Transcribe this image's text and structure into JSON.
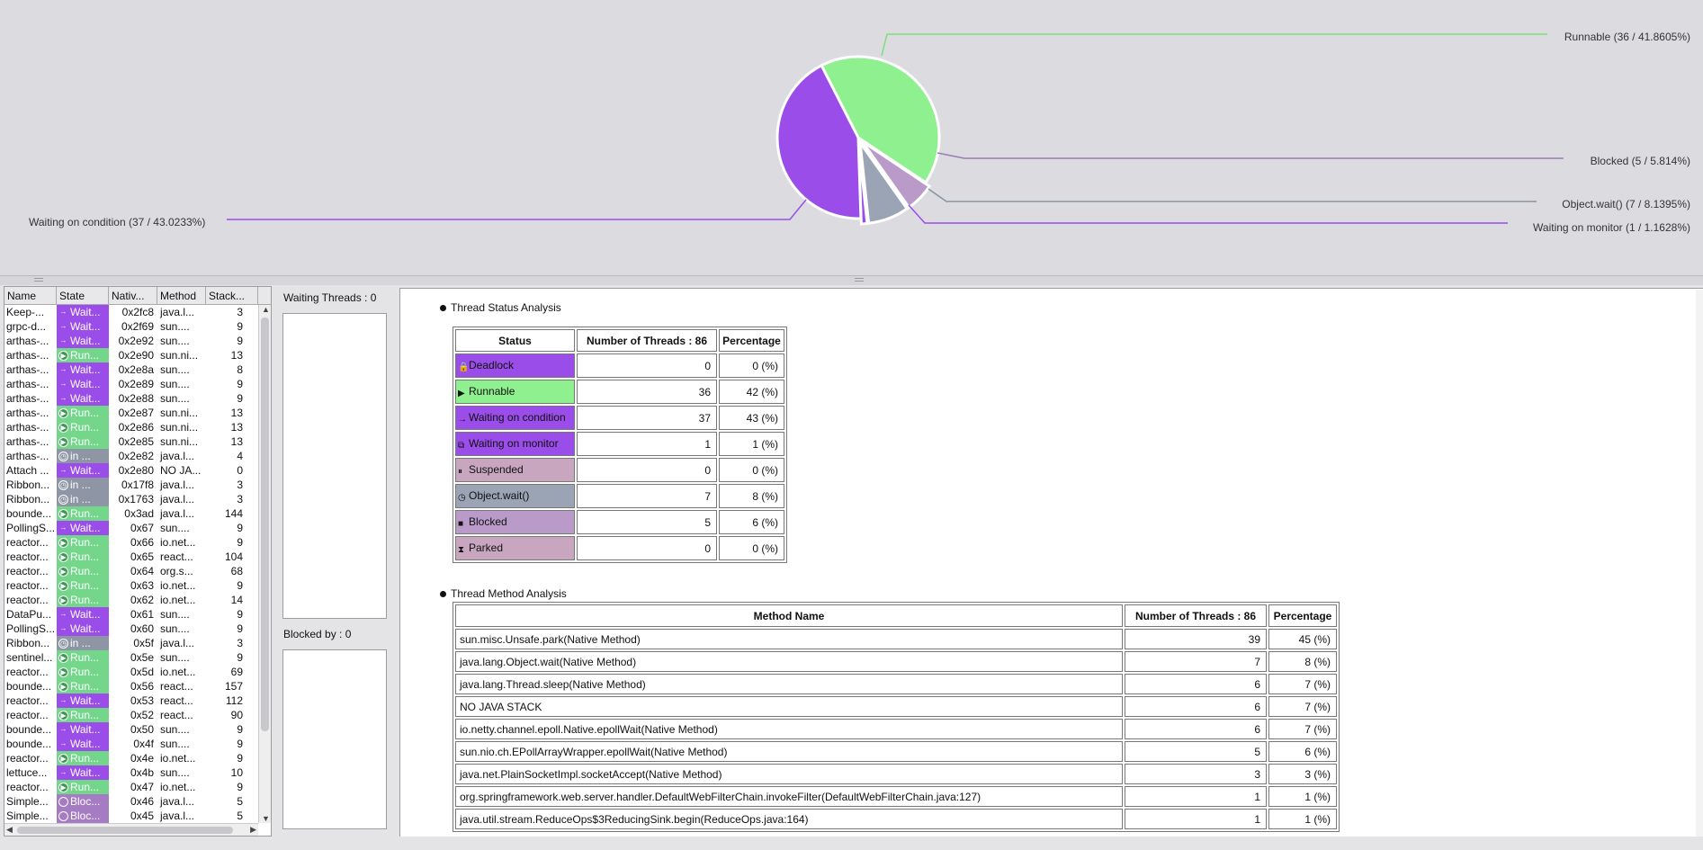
{
  "pie": {
    "labels": {
      "runnable": "Runnable (36  / 41.8605%)",
      "blocked": "Blocked (5  / 5.814%)",
      "object_wait": "Object.wait() (7  / 8.1395%)",
      "waiting_monitor": "Waiting on monitor (1  / 1.1628%)",
      "waiting_condition": "Waiting on condition (37  / 43.0233%)"
    }
  },
  "chart_data": {
    "type": "pie",
    "categories": [
      "Runnable",
      "Blocked",
      "Object.wait()",
      "Waiting on monitor",
      "Waiting on condition"
    ],
    "values": [
      36,
      5,
      7,
      1,
      37
    ],
    "percentages": [
      41.8605,
      5.814,
      8.1395,
      1.1628,
      43.0233
    ],
    "colors": [
      "#8ef08e",
      "#b99ac8",
      "#9aa4b4",
      "#9a4de8",
      "#9a4de8"
    ]
  },
  "threads": {
    "headers": [
      "Name",
      "State",
      "Nativ...",
      "Method",
      "Stack..."
    ],
    "rows": [
      {
        "name": "Keep-...",
        "state": "Wait...",
        "kind": "Wait",
        "nat": "0x2fc8",
        "meth": "java.l...",
        "stack": "3"
      },
      {
        "name": "grpc-d...",
        "state": "Wait...",
        "kind": "Wait",
        "nat": "0x2f69",
        "meth": "sun....",
        "stack": "9"
      },
      {
        "name": "arthas-...",
        "state": "Wait...",
        "kind": "Wait",
        "nat": "0x2e92",
        "meth": "sun....",
        "stack": "9"
      },
      {
        "name": "arthas-...",
        "state": "Run...",
        "kind": "Run",
        "nat": "0x2e90",
        "meth": "sun.ni...",
        "stack": "13"
      },
      {
        "name": "arthas-...",
        "state": "Wait...",
        "kind": "Wait",
        "nat": "0x2e8a",
        "meth": "sun....",
        "stack": "8"
      },
      {
        "name": "arthas-...",
        "state": "Wait...",
        "kind": "Wait",
        "nat": "0x2e89",
        "meth": "sun....",
        "stack": "9"
      },
      {
        "name": "arthas-...",
        "state": "Wait...",
        "kind": "Wait",
        "nat": "0x2e88",
        "meth": "sun....",
        "stack": "9"
      },
      {
        "name": "arthas-...",
        "state": "Run...",
        "kind": "Run",
        "nat": "0x2e87",
        "meth": "sun.ni...",
        "stack": "13"
      },
      {
        "name": "arthas-...",
        "state": "Run...",
        "kind": "Run",
        "nat": "0x2e86",
        "meth": "sun.ni...",
        "stack": "13"
      },
      {
        "name": "arthas-...",
        "state": "Run...",
        "kind": "Run",
        "nat": "0x2e85",
        "meth": "sun.ni...",
        "stack": "13"
      },
      {
        "name": "arthas-...",
        "state": "in ...",
        "kind": "in",
        "nat": "0x2e82",
        "meth": "java.l...",
        "stack": "4"
      },
      {
        "name": "Attach ...",
        "state": "Wait...",
        "kind": "Wait",
        "nat": "0x2e80",
        "meth": "NO JA...",
        "stack": "0"
      },
      {
        "name": "Ribbon...",
        "state": "in ...",
        "kind": "in",
        "nat": "0x17f8",
        "meth": "java.l...",
        "stack": "3"
      },
      {
        "name": "Ribbon...",
        "state": "in ...",
        "kind": "in",
        "nat": "0x1763",
        "meth": "java.l...",
        "stack": "3"
      },
      {
        "name": "bounde...",
        "state": "Run...",
        "kind": "Run",
        "nat": "0x3ad",
        "meth": "java.l...",
        "stack": "144"
      },
      {
        "name": "PollingS...",
        "state": "Wait...",
        "kind": "Wait",
        "nat": "0x67",
        "meth": "sun....",
        "stack": "9"
      },
      {
        "name": "reactor...",
        "state": "Run...",
        "kind": "Run",
        "nat": "0x66",
        "meth": "io.net...",
        "stack": "9"
      },
      {
        "name": "reactor...",
        "state": "Run...",
        "kind": "Run",
        "nat": "0x65",
        "meth": "react...",
        "stack": "104"
      },
      {
        "name": "reactor...",
        "state": "Run...",
        "kind": "Run",
        "nat": "0x64",
        "meth": "org.s...",
        "stack": "68"
      },
      {
        "name": "reactor...",
        "state": "Run...",
        "kind": "Run",
        "nat": "0x63",
        "meth": "io.net...",
        "stack": "9"
      },
      {
        "name": "reactor...",
        "state": "Run...",
        "kind": "Run",
        "nat": "0x62",
        "meth": "io.net...",
        "stack": "14"
      },
      {
        "name": "DataPu...",
        "state": "Wait...",
        "kind": "Wait",
        "nat": "0x61",
        "meth": "sun....",
        "stack": "9"
      },
      {
        "name": "PollingS...",
        "state": "Wait...",
        "kind": "Wait",
        "nat": "0x60",
        "meth": "sun....",
        "stack": "9"
      },
      {
        "name": "Ribbon...",
        "state": "in ...",
        "kind": "in",
        "nat": "0x5f",
        "meth": "java.l...",
        "stack": "3"
      },
      {
        "name": "sentinel...",
        "state": "Run...",
        "kind": "Run",
        "nat": "0x5e",
        "meth": "sun....",
        "stack": "9"
      },
      {
        "name": "reactor...",
        "state": "Run...",
        "kind": "Run",
        "nat": "0x5d",
        "meth": "io.net...",
        "stack": "69"
      },
      {
        "name": "bounde...",
        "state": "Run...",
        "kind": "Run",
        "nat": "0x56",
        "meth": "react...",
        "stack": "157"
      },
      {
        "name": "reactor...",
        "state": "Wait...",
        "kind": "Wait",
        "nat": "0x53",
        "meth": "react...",
        "stack": "112"
      },
      {
        "name": "reactor...",
        "state": "Run...",
        "kind": "Run",
        "nat": "0x52",
        "meth": "react...",
        "stack": "90"
      },
      {
        "name": "bounde...",
        "state": "Wait...",
        "kind": "Wait",
        "nat": "0x50",
        "meth": "sun....",
        "stack": "9"
      },
      {
        "name": "bounde...",
        "state": "Wait...",
        "kind": "Wait",
        "nat": "0x4f",
        "meth": "sun....",
        "stack": "9"
      },
      {
        "name": "reactor...",
        "state": "Run...",
        "kind": "Run",
        "nat": "0x4e",
        "meth": "io.net...",
        "stack": "9"
      },
      {
        "name": "lettuce...",
        "state": "Wait...",
        "kind": "Wait",
        "nat": "0x4b",
        "meth": "sun....",
        "stack": "10"
      },
      {
        "name": "reactor...",
        "state": "Run...",
        "kind": "Run",
        "nat": "0x47",
        "meth": "io.net...",
        "stack": "9"
      },
      {
        "name": "Simple...",
        "state": "Bloc...",
        "kind": "Bloc",
        "nat": "0x46",
        "meth": "java.l...",
        "stack": "5"
      },
      {
        "name": "Simple...",
        "state": "Bloc...",
        "kind": "Bloc",
        "nat": "0x45",
        "meth": "java.l...",
        "stack": "5"
      }
    ]
  },
  "middle": {
    "waiting_label": "Waiting Threads : 0",
    "blocked_label": "Blocked by : 0"
  },
  "status_analysis": {
    "title": "Thread Status Analysis",
    "headers": [
      "Status",
      "Number of Threads : 86",
      "Percentage"
    ],
    "rows": [
      {
        "label": "Deadlock",
        "count": "0",
        "pct": "0 (%)",
        "color": "#9a4de8",
        "icon": "lock-icon"
      },
      {
        "label": "Runnable",
        "count": "36",
        "pct": "42 (%)",
        "color": "#8ef08e",
        "icon": "runnable-icon"
      },
      {
        "label": "Waiting on condition",
        "count": "37",
        "pct": "43 (%)",
        "color": "#9a4de8",
        "icon": "arrow-icon"
      },
      {
        "label": "Waiting on monitor",
        "count": "1",
        "pct": "1 (%)",
        "color": "#9a4de8",
        "icon": "monitor-icon"
      },
      {
        "label": "Suspended",
        "count": "0",
        "pct": "0 (%)",
        "color": "#c8a6c0",
        "icon": "pause-icon"
      },
      {
        "label": "Object.wait()",
        "count": "7",
        "pct": "8 (%)",
        "color": "#9aa4b4",
        "icon": "clock-icon"
      },
      {
        "label": "Blocked",
        "count": "5",
        "pct": "6 (%)",
        "color": "#b99ac8",
        "icon": "block-icon"
      },
      {
        "label": "Parked",
        "count": "0",
        "pct": "0 (%)",
        "color": "#c8a6c0",
        "icon": "hourglass-icon"
      }
    ]
  },
  "method_analysis": {
    "title": "Thread Method Analysis",
    "headers": [
      "Method Name",
      "Number of Threads : 86",
      "Percentage"
    ],
    "rows": [
      {
        "name": "sun.misc.Unsafe.park(Native Method)",
        "count": "39",
        "pct": "45 (%)"
      },
      {
        "name": "java.lang.Object.wait(Native Method)",
        "count": "7",
        "pct": "8 (%)"
      },
      {
        "name": "java.lang.Thread.sleep(Native Method)",
        "count": "6",
        "pct": "7 (%)"
      },
      {
        "name": "NO JAVA STACK",
        "count": "6",
        "pct": "7 (%)"
      },
      {
        "name": "io.netty.channel.epoll.Native.epollWait(Native Method)",
        "count": "6",
        "pct": "7 (%)"
      },
      {
        "name": "sun.nio.ch.EPollArrayWrapper.epollWait(Native Method)",
        "count": "5",
        "pct": "6 (%)"
      },
      {
        "name": "java.net.PlainSocketImpl.socketAccept(Native Method)",
        "count": "3",
        "pct": "3 (%)"
      },
      {
        "name": "org.springframework.web.server.handler.DefaultWebFilterChain.invokeFilter(DefaultWebFilterChain.java:127)",
        "count": "1",
        "pct": "1 (%)"
      },
      {
        "name": "java.util.stream.ReduceOps$3ReducingSink.begin(ReduceOps.java:164)",
        "count": "1",
        "pct": "1 (%)"
      }
    ]
  }
}
